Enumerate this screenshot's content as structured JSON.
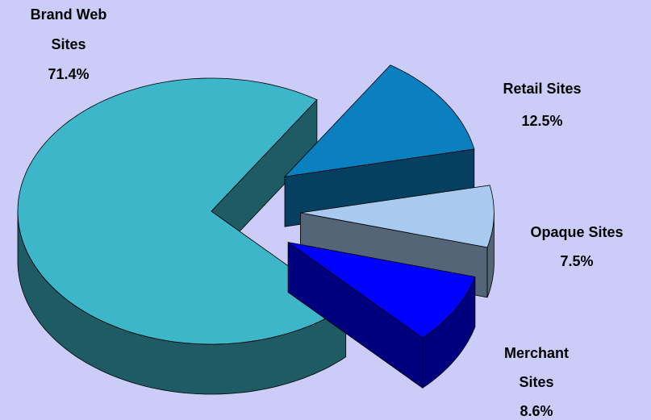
{
  "chart_data": {
    "type": "pie3d",
    "categories": [
      "Brand Web Sites",
      "Retail Sites",
      "Opaque Sites",
      "Merchant Sites"
    ],
    "values": [
      71.4,
      12.5,
      7.5,
      8.6
    ],
    "value_labels": [
      "71.4%",
      "12.5%",
      "7.5%",
      "8.6%"
    ],
    "colors": [
      "#3cb6c8",
      "#0a80c0",
      "#a8caf0",
      "#0000ff"
    ]
  }
}
